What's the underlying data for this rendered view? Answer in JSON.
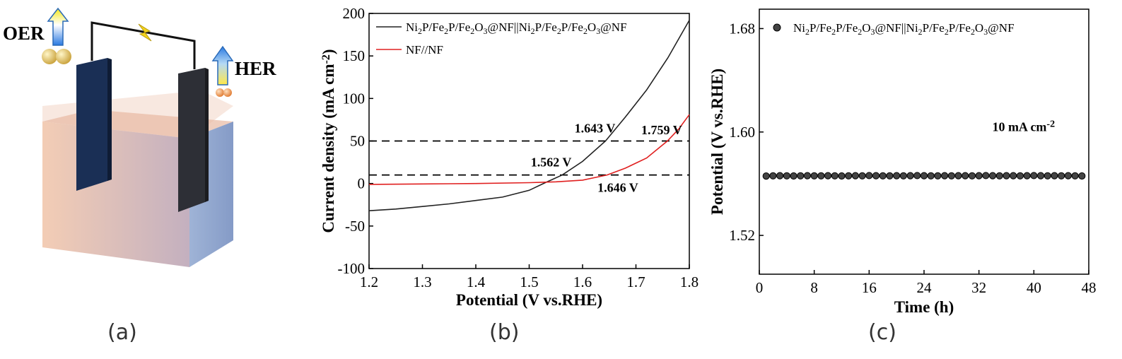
{
  "panels": {
    "a": {
      "label": "(a)",
      "oer_label": "OER",
      "her_label": "HER"
    },
    "b": {
      "label": "(b)"
    },
    "c": {
      "label": "(c)"
    }
  },
  "chart_data": [
    {
      "id": "b",
      "type": "line",
      "xlabel": "Potential (V vs.RHE)",
      "ylabel": "Current density  (mA cm⁻²)",
      "xlim": [
        1.2,
        1.8
      ],
      "ylim": [
        -100,
        200
      ],
      "xticks": [
        1.2,
        1.3,
        1.4,
        1.5,
        1.6,
        1.7,
        1.8
      ],
      "yticks": [
        -100,
        -50,
        0,
        50,
        100,
        150,
        200
      ],
      "legend_position": "top-left",
      "series": [
        {
          "name": "Ni₂P/Fe₂P/Fe₂O₃@NF||Ni₂P/Fe₂P/Fe₂O₃@NF",
          "color": "#222222",
          "x": [
            1.2,
            1.25,
            1.3,
            1.35,
            1.4,
            1.45,
            1.5,
            1.53,
            1.562,
            1.6,
            1.643,
            1.68,
            1.72,
            1.76,
            1.8
          ],
          "y": [
            -32,
            -30,
            -27,
            -24,
            -20,
            -16,
            -8,
            1,
            10,
            26,
            50,
            78,
            110,
            148,
            192
          ]
        },
        {
          "name": "NF//NF",
          "color": "#e02020",
          "x": [
            1.2,
            1.3,
            1.4,
            1.5,
            1.55,
            1.6,
            1.646,
            1.68,
            1.72,
            1.759,
            1.78,
            1.8
          ],
          "y": [
            -1,
            -0.5,
            0,
            1,
            2,
            4,
            10,
            18,
            30,
            50,
            64,
            81
          ]
        }
      ],
      "hlines": [
        50,
        10
      ],
      "annotations": [
        {
          "text": "1.643 V",
          "x": 1.585,
          "y": 60
        },
        {
          "text": "1.759 V",
          "x": 1.71,
          "y": 58
        },
        {
          "text": "1.562 V",
          "x": 1.503,
          "y": 20
        },
        {
          "text": "1.646 V",
          "x": 1.628,
          "y": -10
        }
      ]
    },
    {
      "id": "c",
      "type": "scatter",
      "xlabel": "Time (h)",
      "ylabel": "Potential (V vs.RHE)",
      "xlim": [
        0,
        48
      ],
      "ylim": [
        1.49,
        1.695
      ],
      "xticks": [
        0,
        8,
        16,
        24,
        32,
        40,
        48
      ],
      "yticks": [
        1.52,
        1.6,
        1.68
      ],
      "legend_position": "top",
      "series": [
        {
          "name": "Ni₂P/Fe₂P/Fe₂O₃@NF||Ni₂P/Fe₂P/Fe₂O₃@NF",
          "color": "#111111",
          "x_start": 1,
          "x_step": 1,
          "values": [
            1.5659,
            1.5661,
            1.5662,
            1.5661,
            1.566,
            1.5661,
            1.5662,
            1.5661,
            1.5661,
            1.5662,
            1.5661,
            1.566,
            1.5661,
            1.5662,
            1.5661,
            1.5663,
            1.5662,
            1.5661,
            1.5661,
            1.5662,
            1.5661,
            1.5662,
            1.5663,
            1.5662,
            1.5661,
            1.5661,
            1.5662,
            1.5661,
            1.5662,
            1.5662,
            1.5661,
            1.5662,
            1.5663,
            1.5662,
            1.5661,
            1.5662,
            1.5662,
            1.5661,
            1.5662,
            1.5663,
            1.5662,
            1.5661,
            1.5662,
            1.5661,
            1.5662,
            1.5661,
            1.566
          ]
        }
      ],
      "annotations": [
        {
          "text": "10 mA cm⁻²",
          "x": 38.5,
          "y": 1.5855
        }
      ]
    }
  ]
}
